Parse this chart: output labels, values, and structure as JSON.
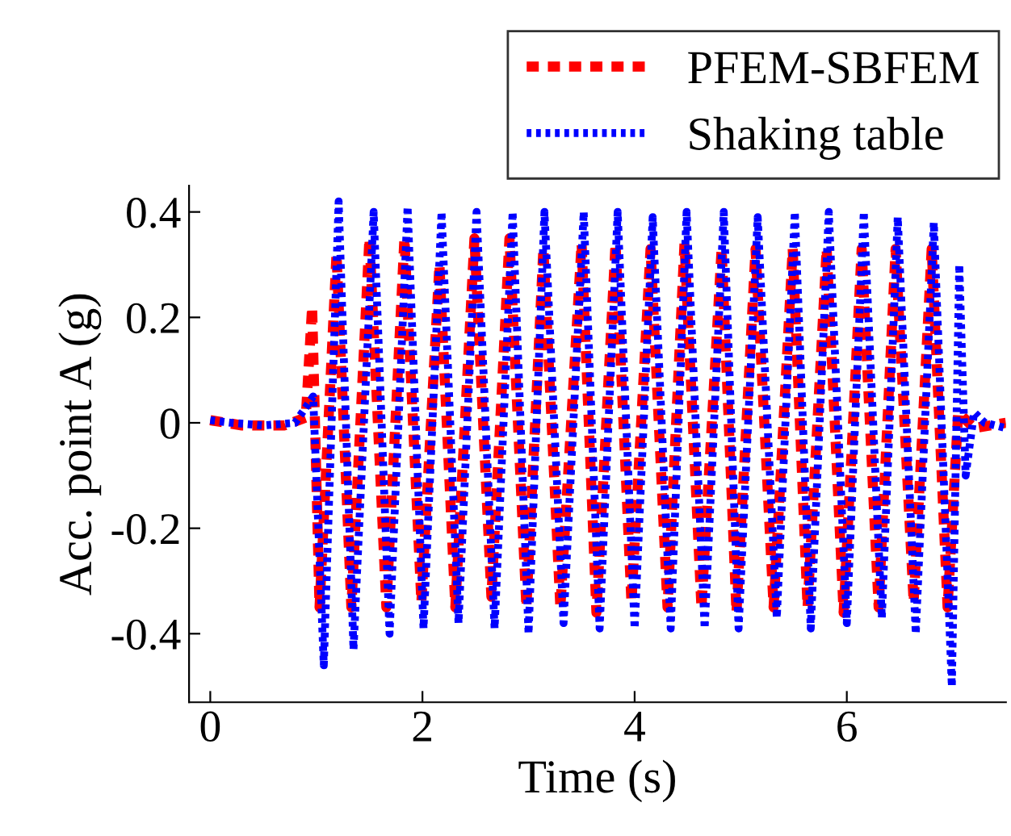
{
  "chart_data": {
    "type": "line",
    "xlabel": "Time (s)",
    "ylabel": "Acc. point A (g)",
    "xlim": [
      -0.2,
      7.5
    ],
    "ylim": [
      -0.53,
      0.45
    ],
    "xticks": [
      0,
      2,
      4,
      6
    ],
    "yticks": [
      -0.4,
      -0.2,
      0,
      0.2,
      0.4
    ],
    "grid": false,
    "legend": "top right",
    "marker": "none",
    "series": [
      {
        "name": "PFEM-SBFEM",
        "color": "#ff0000",
        "line_style": "dashed",
        "x": [
          0,
          0.3,
          0.7,
          0.9,
          0.96,
          1.03,
          1.19,
          1.33,
          1.5,
          1.66,
          1.83,
          1.99,
          2.16,
          2.31,
          2.49,
          2.65,
          2.82,
          2.98,
          3.14,
          3.3,
          3.5,
          3.64,
          3.82,
          3.97,
          4.15,
          4.31,
          4.47,
          4.63,
          4.82,
          4.96,
          5.14,
          5.31,
          5.49,
          5.63,
          5.81,
          5.97,
          6.14,
          6.3,
          6.46,
          6.63,
          6.8,
          6.95,
          7.05,
          7.2,
          7.5
        ],
        "values": [
          0.005,
          -0.005,
          -0.005,
          0.01,
          0.22,
          -0.35,
          0.32,
          -0.35,
          0.35,
          -0.35,
          0.35,
          -0.34,
          0.3,
          -0.35,
          0.35,
          -0.33,
          0.35,
          -0.35,
          0.33,
          -0.35,
          0.34,
          -0.36,
          0.34,
          -0.34,
          0.33,
          -0.35,
          0.34,
          -0.35,
          0.33,
          -0.36,
          0.33,
          -0.35,
          0.33,
          -0.35,
          0.33,
          -0.36,
          0.33,
          -0.35,
          0.33,
          -0.34,
          0.33,
          -0.35,
          0.02,
          -0.01,
          0
        ]
      },
      {
        "name": "Shaking table",
        "color": "#0000ff",
        "line_style": "dotted",
        "x": [
          0,
          0.2,
          0.5,
          0.8,
          0.97,
          1.07,
          1.21,
          1.35,
          1.54,
          1.69,
          1.86,
          2.01,
          2.18,
          2.34,
          2.51,
          2.68,
          2.85,
          3.0,
          3.15,
          3.33,
          3.52,
          3.67,
          3.84,
          4.0,
          4.17,
          4.34,
          4.49,
          4.66,
          4.84,
          4.98,
          5.16,
          5.34,
          5.51,
          5.66,
          5.83,
          6.0,
          6.16,
          6.33,
          6.48,
          6.65,
          6.82,
          6.99,
          7.06,
          7.12,
          7.2,
          7.3,
          7.5
        ],
        "values": [
          0.005,
          0,
          -0.005,
          0,
          0.05,
          -0.46,
          0.42,
          -0.43,
          0.4,
          -0.4,
          0.41,
          -0.39,
          0.4,
          -0.38,
          0.4,
          -0.39,
          0.4,
          -0.4,
          0.4,
          -0.38,
          0.4,
          -0.39,
          0.4,
          -0.39,
          0.39,
          -0.39,
          0.4,
          -0.39,
          0.4,
          -0.39,
          0.39,
          -0.37,
          0.4,
          -0.39,
          0.4,
          -0.38,
          0.4,
          -0.37,
          0.39,
          -0.4,
          0.38,
          -0.5,
          0.3,
          -0.1,
          0.02,
          0,
          -0.01
        ]
      }
    ]
  }
}
